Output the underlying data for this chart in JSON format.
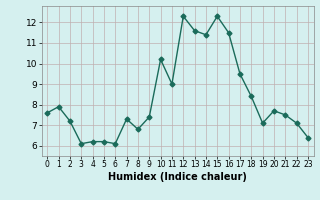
{
  "x": [
    0,
    1,
    2,
    3,
    4,
    5,
    6,
    7,
    8,
    9,
    10,
    11,
    12,
    13,
    14,
    15,
    16,
    17,
    18,
    19,
    20,
    21,
    22,
    23
  ],
  "y": [
    7.6,
    7.9,
    7.2,
    6.1,
    6.2,
    6.2,
    6.1,
    7.3,
    6.8,
    7.4,
    10.2,
    9.0,
    12.3,
    11.6,
    11.4,
    12.3,
    11.5,
    9.5,
    8.4,
    7.1,
    7.7,
    7.5,
    7.1,
    6.4
  ],
  "xlabel": "Humidex (Indice chaleur)",
  "ylim": [
    5.5,
    12.8
  ],
  "xlim": [
    -0.5,
    23.5
  ],
  "yticks": [
    6,
    7,
    8,
    9,
    10,
    11,
    12
  ],
  "xticks": [
    0,
    1,
    2,
    3,
    4,
    5,
    6,
    7,
    8,
    9,
    10,
    11,
    12,
    13,
    14,
    15,
    16,
    17,
    18,
    19,
    20,
    21,
    22,
    23
  ],
  "line_color": "#1a6b5a",
  "bg_color": "#d5f0ef",
  "grid_color": "#c0b0b0",
  "marker": "D",
  "marker_size": 2.5,
  "line_width": 1.0,
  "tick_fontsize_x": 5.5,
  "tick_fontsize_y": 6.5,
  "xlabel_fontsize": 7.0
}
